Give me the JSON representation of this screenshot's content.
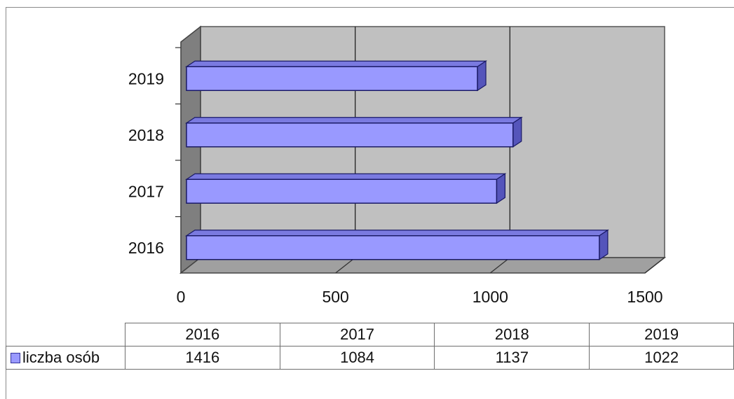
{
  "chart_data": {
    "type": "bar",
    "orientation": "horizontal",
    "three_d": true,
    "categories": [
      "2016",
      "2017",
      "2018",
      "2019"
    ],
    "series": [
      {
        "name": "liczba osób",
        "values": [
          1416,
          1084,
          1137,
          1022
        ],
        "color": "#9999ff"
      }
    ],
    "xlim": [
      0,
      1500
    ],
    "x_ticks": [
      "0",
      "500",
      "1000",
      "1500"
    ],
    "grid": true,
    "wall_color": "#c0c0c0",
    "data_table": true,
    "legend_placement": "data-table"
  }
}
